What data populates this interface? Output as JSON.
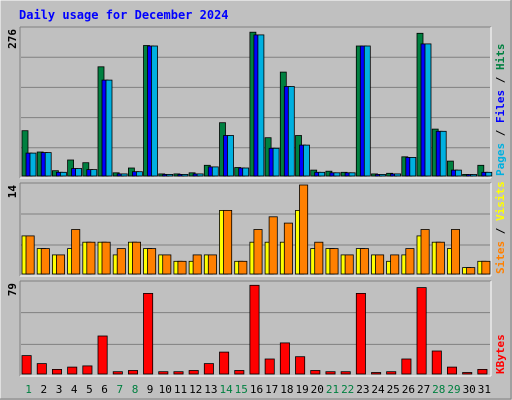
{
  "chart_data": {
    "type": "bar",
    "title": "Daily usage for December 2024",
    "days": [
      "1",
      "2",
      "3",
      "4",
      "5",
      "6",
      "7",
      "8",
      "9",
      "10",
      "11",
      "12",
      "13",
      "14",
      "15",
      "16",
      "17",
      "18",
      "19",
      "20",
      "21",
      "22",
      "23",
      "24",
      "25",
      "26",
      "27",
      "28",
      "29",
      "30",
      "31"
    ],
    "weekend_days": [
      "1",
      "7",
      "8",
      "14",
      "15",
      "21",
      "22",
      "28",
      "29"
    ],
    "panels": [
      {
        "id": "top",
        "ymax": 276,
        "ymax_label": "276",
        "right_labels": [
          {
            "text": "Pages",
            "color": "#00b0e0"
          },
          {
            "text": " / ",
            "color": "#000000"
          },
          {
            "text": "Files",
            "color": "#0000ff"
          },
          {
            "text": " / ",
            "color": "#000000"
          },
          {
            "text": "Hits",
            "color": "#008040"
          }
        ],
        "series": [
          {
            "name": "Hits",
            "color": "#008040",
            "values": [
              85,
              45,
              10,
              30,
              25,
              205,
              6,
              15,
              245,
              4,
              4,
              6,
              20,
              100,
              16,
              270,
              72,
              195,
              76,
              11,
              9,
              7,
              244,
              4,
              5,
              36,
              268,
              88,
              28,
              3,
              20
            ]
          },
          {
            "name": "Files",
            "color": "#0000ff",
            "values": [
              43,
              44,
              7,
              14,
              12,
              180,
              4,
              8,
              244,
              3,
              3,
              4,
              17,
              76,
              15,
              265,
              52,
              168,
              58,
              7,
              6,
              6,
              244,
              3,
              4,
              35,
              248,
              84,
              11,
              2,
              7
            ]
          },
          {
            "name": "Pages",
            "color": "#00b0e0",
            "values": [
              43,
              44,
              7,
              14,
              12,
              180,
              4,
              8,
              244,
              3,
              3,
              4,
              17,
              76,
              15,
              265,
              52,
              168,
              58,
              7,
              6,
              6,
              244,
              3,
              4,
              35,
              248,
              84,
              11,
              2,
              7
            ]
          }
        ]
      },
      {
        "id": "middle",
        "ymax": 14,
        "ymax_label": "14",
        "right_labels": [
          {
            "text": "Sites",
            "color": "#ff8000"
          },
          {
            "text": " / ",
            "color": "#000000"
          },
          {
            "text": "Visits",
            "color": "#ffff00"
          }
        ],
        "series": [
          {
            "name": "Visits",
            "color": "#ffff00",
            "values": [
              6,
              4,
              3,
              4,
              5,
              5,
              3,
              5,
              4,
              3,
              2,
              2,
              3,
              10,
              2,
              5,
              5,
              5,
              10,
              4,
              4,
              3,
              4,
              3,
              2,
              3,
              6,
              5,
              4,
              1,
              2
            ]
          },
          {
            "name": "Sites",
            "color": "#ff8000",
            "values": [
              6,
              4,
              3,
              7,
              5,
              5,
              4,
              5,
              4,
              3,
              2,
              3,
              3,
              10,
              2,
              7,
              9,
              8,
              14,
              5,
              4,
              3,
              4,
              3,
              3,
              4,
              7,
              5,
              7,
              1,
              2
            ]
          }
        ]
      },
      {
        "id": "bottom",
        "ymax": 79,
        "ymax_label": "79",
        "right_labels": [
          {
            "text": "KBytes",
            "color": "#ff0000"
          }
        ],
        "series": [
          {
            "name": "KBytes",
            "color": "#ff0000",
            "values": [
              16,
              9,
              4,
              6,
              7,
              33,
              2,
              3,
              70,
              2,
              2,
              3,
              9,
              19,
              3,
              77,
              13,
              27,
              15,
              3,
              2,
              2,
              70,
              1,
              2,
              13,
              75,
              20,
              6,
              1,
              4
            ]
          }
        ]
      }
    ]
  },
  "colors": {
    "background": "#c0c0c0",
    "plot_background": "#c0c0c0",
    "gridline": "#808080",
    "title": "#0000ff",
    "day_weekday": "#000000",
    "day_weekend": "#008040"
  }
}
